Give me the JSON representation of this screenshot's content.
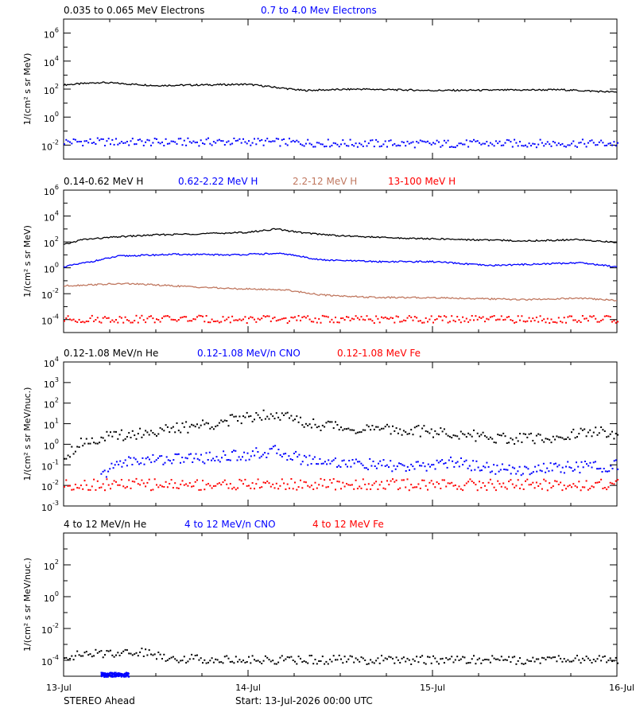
{
  "chart_data": [
    {
      "type": "scatter",
      "ylabel": "1/(cm² s sr MeV)",
      "yscale": "log",
      "ylim_exp": [
        -3,
        7
      ],
      "ytick_exponents": [
        -2,
        0,
        2,
        4,
        6
      ],
      "series": [
        {
          "name": "0.035 to 0.065 MeV Electrons",
          "color": "#000000",
          "style": "line",
          "x": [
            0,
            0.2,
            0.5,
            1.0,
            1.3,
            1.6,
            2.0,
            2.4,
            2.7,
            3.0
          ],
          "y": [
            200,
            300,
            180,
            220,
            80,
            100,
            80,
            85,
            90,
            60
          ]
        },
        {
          "name": "0.7 to 4.0 Mev Electrons",
          "color": "#0000ff",
          "style": "dots",
          "x": [
            0,
            0.5,
            1.0,
            1.5,
            2.0,
            2.5,
            3.0
          ],
          "y": [
            0.02,
            0.018,
            0.02,
            0.015,
            0.014,
            0.015,
            0.015
          ]
        }
      ]
    },
    {
      "type": "scatter",
      "ylabel": "1/(cm² s sr MeV)",
      "yscale": "log",
      "ylim_exp": [
        -5,
        6
      ],
      "ytick_exponents": [
        -4,
        -2,
        0,
        2,
        4,
        6
      ],
      "series": [
        {
          "name": "0.14-0.62 MeV H",
          "color": "#000000",
          "style": "line",
          "x": [
            0,
            0.1,
            0.3,
            0.5,
            0.8,
            1.0,
            1.15,
            1.3,
            1.5,
            1.8,
            2.2,
            2.5,
            2.8,
            3.0
          ],
          "y": [
            60,
            150,
            250,
            350,
            450,
            550,
            1000,
            500,
            300,
            200,
            150,
            120,
            150,
            90
          ]
        },
        {
          "name": "0.62-2.22 MeV H",
          "color": "#0000ff",
          "style": "line",
          "x": [
            0,
            0.15,
            0.3,
            0.6,
            0.9,
            1.1,
            1.2,
            1.4,
            1.7,
            2.0,
            2.3,
            2.6,
            2.8,
            3.0
          ],
          "y": [
            1.2,
            3,
            8,
            11,
            10,
            12,
            12,
            4,
            3,
            3,
            1.5,
            2,
            2.5,
            1.2
          ]
        },
        {
          "name": "2.2-12 MeV H",
          "color": "#c07860",
          "style": "line",
          "x": [
            0,
            0.15,
            0.35,
            0.6,
            0.9,
            1.2,
            1.4,
            1.7,
            2.0,
            2.3,
            2.5,
            2.8,
            3.0
          ],
          "y": [
            0.04,
            0.05,
            0.06,
            0.04,
            0.025,
            0.02,
            0.008,
            0.005,
            0.005,
            0.004,
            0.0035,
            0.0045,
            0.003
          ]
        },
        {
          "name": "13-100 MeV H",
          "color": "#ff0000",
          "style": "dots",
          "x": [
            0,
            0.5,
            1.0,
            1.5,
            2.0,
            2.5,
            3.0
          ],
          "y": [
            0.00012,
            0.00013,
            0.00012,
            0.00012,
            0.00012,
            0.00012,
            0.00012
          ]
        }
      ]
    },
    {
      "type": "scatter",
      "ylabel": "1/(cm² s sr MeV/nuc.)",
      "yscale": "log",
      "ylim_exp": [
        -3,
        4
      ],
      "ytick_exponents": [
        -3,
        -2,
        -1,
        0,
        1,
        2,
        3,
        4
      ],
      "series": [
        {
          "name": "0.12-1.08 MeV/n He",
          "color": "#000000",
          "style": "dots",
          "x": [
            0,
            0.1,
            0.3,
            0.6,
            0.9,
            1.05,
            1.15,
            1.3,
            1.6,
            1.9,
            2.2,
            2.4,
            2.6,
            2.9,
            3.0
          ],
          "y": [
            0.3,
            1.5,
            3,
            6,
            15,
            30,
            35,
            12,
            6,
            5,
            3,
            2,
            2,
            5,
            2
          ]
        },
        {
          "name": "0.12-1.08 MeV/n CNO",
          "color": "#0000ff",
          "style": "dots",
          "x": [
            0.2,
            0.3,
            0.5,
            0.8,
            1.0,
            1.15,
            1.3,
            1.6,
            1.9,
            2.1,
            2.4,
            2.7,
            3.0
          ],
          "y": [
            0.03,
            0.15,
            0.2,
            0.25,
            0.35,
            0.5,
            0.2,
            0.12,
            0.08,
            0.15,
            0.06,
            0.08,
            0.1
          ]
        },
        {
          "name": "0.12-1.08 MeV Fe",
          "color": "#ff0000",
          "style": "dots",
          "x": [
            0,
            0.5,
            1.0,
            1.5,
            2.0,
            2.5,
            3.0
          ],
          "y": [
            0.012,
            0.012,
            0.012,
            0.012,
            0.012,
            0.012,
            0.012
          ]
        }
      ]
    },
    {
      "type": "scatter",
      "ylabel": "1/(cm² s sr MeV/nuc.)",
      "yscale": "log",
      "ylim_exp": [
        -5,
        4
      ],
      "ytick_exponents": [
        -4,
        -2,
        0,
        2
      ],
      "series": [
        {
          "name": "4 to 12 MeV/n He",
          "color": "#000000",
          "style": "dots",
          "x": [
            0,
            0.2,
            0.4,
            0.6,
            1.0,
            1.5,
            2.0,
            2.5,
            2.7,
            3.0
          ],
          "y": [
            0.0002,
            0.0003,
            0.0004,
            0.00015,
            0.00012,
            0.00012,
            0.00012,
            0.00012,
            0.00013,
            0.00012
          ]
        },
        {
          "name": "4 to 12 MeV/n CNO",
          "color": "#0000ff",
          "style": "dots",
          "x": [
            0.2,
            0.25,
            0.3,
            0.35
          ],
          "y": [
            1e-05,
            1e-05,
            1e-05,
            1e-05
          ]
        },
        {
          "name": "4 to 12 MeV Fe",
          "color": "#ff0000",
          "style": "dots",
          "x": [],
          "y": []
        }
      ]
    }
  ],
  "x_axis": {
    "range_days": [
      0,
      3
    ],
    "ticks": [
      {
        "day": 0,
        "label": "13-Jul"
      },
      {
        "day": 1,
        "label": "14-Jul"
      },
      {
        "day": 2,
        "label": "15-Jul"
      },
      {
        "day": 3,
        "label": "16-Jul"
      }
    ]
  },
  "footer": {
    "spacecraft": "STEREO Ahead",
    "start": "Start: 13-Jul-2026 00:00 UTC"
  }
}
